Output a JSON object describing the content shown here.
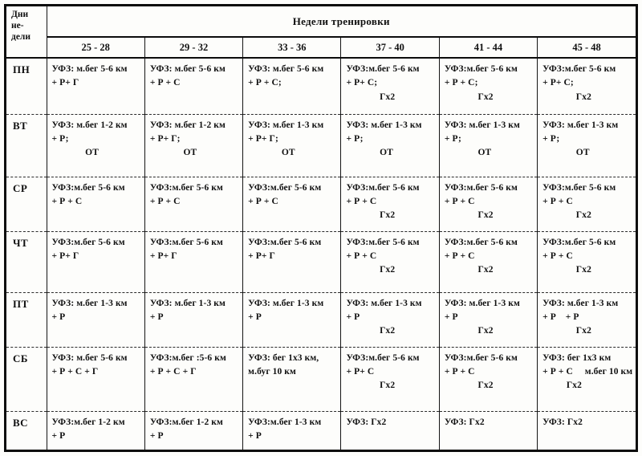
{
  "table": {
    "corner_header": "Дни\nне-\nдели",
    "main_header": "Недели тренировки",
    "week_columns": [
      "25 - 28",
      "29 - 32",
      "33 - 36",
      "37 - 40",
      "41 - 44",
      "45 - 48"
    ],
    "rows": [
      {
        "day": "ПН",
        "cells": [
          "УФЗ: м.бег 5-6 км\n+ Р+ Г",
          "УФЗ: м.бег 5-6 км\n+ Р + С",
          "УФЗ: м.бег 5-6 км\n+ Р + С;",
          "УФЗ:м.бег 5-6 км\n+ Р+ С;\n              Гх2",
          "УФЗ:м.бег 5-6 км\n+ Р + С;\n              Гх2",
          "УФЗ:м.бег 5-6 км\n+ Р+ С;\n              Гх2"
        ]
      },
      {
        "day": "ВТ",
        "cells": [
          "УФЗ: м.бег 1-2 км\n+ Р;\n              ОТ",
          "УФЗ: м.бег 1-2 км\n+ Р+ Г;\n              ОТ",
          "УФЗ: м.бег 1-3 км\n+ Р+ Г;\n              ОТ",
          "УФЗ: м.бег 1-3 км\n+ Р;\n              ОТ",
          "УФЗ: м.бег 1-3 км\n+ Р;\n              ОТ",
          "УФЗ: м.бег 1-3 км\n+ Р;\n              ОТ"
        ]
      },
      {
        "day": "СР",
        "cells": [
          "УФЗ:м.бег 5-6 км\n+ Р + С",
          "УФЗ:м.бег 5-6 км\n+ Р + С",
          "УФЗ:м.бег 5-6 км\n+ Р + С",
          "УФЗ:м.бег 5-6 км\n+ Р + С\n              Гх2",
          "УФЗ:м.бег 5-6 км\n+ Р + С\n              Гх2",
          "УФЗ:м.бег 5-6 км\n+ Р + С\n              Гх2"
        ]
      },
      {
        "day": "ЧТ",
        "cells": [
          "УФЗ:м.бег 5-6 км\n+ Р+ Г",
          "УФЗ:м.бег 5-6 км\n+ Р+ Г",
          "УФЗ:м.бег 5-6 км\n+ Р+ Г",
          "УФЗ:м.бег 5-6 км\n+ Р + С\n              Гх2",
          "УФЗ:м.бег 5-6 км\n+ Р + С\n              Гх2",
          "УФЗ:м.бег 5-6 км\n+ Р + С\n              Гх2"
        ]
      },
      {
        "day": "ПТ",
        "cells": [
          "УФЗ: м.бег 1-3 км\n+ Р",
          "УФЗ: м.бег 1-3 км\n+ Р",
          "УФЗ: м.бег 1-3 км\n+ Р",
          "УФЗ: м.бег 1-3 км\n+ Р\n              Гх2",
          "УФЗ: м.бег 1-3 км\n+ Р\n              Гх2",
          "УФЗ: м.бег 1-3 км\n+ Р    + Р\n              Гх2"
        ]
      },
      {
        "day": "СБ",
        "cells": [
          "УФЗ: м.бег 5-6 км\n+ Р + С + Г",
          "УФЗ:м.бег :5-6 км\n+ Р + С + Г",
          "УФЗ: бег 1х3 км,\nм.буг 10 км",
          "УФЗ:м.бег 5-6 км\n+ Р+ С\n              Гх2",
          "УФЗ:м.бег 5-6 км\n+ Р + С\n              Гх2",
          "УФЗ: бег 1х3 км\n+ Р + С     м.бег 10 км\n          Гх2"
        ]
      },
      {
        "day": "ВС",
        "cells": [
          "УФЗ:м.бег 1-2 км\n+ Р",
          "УФЗ:м.бег 1-2 км\n+ Р",
          "УФЗ:м.бег 1-3 км\n+ Р",
          "УФЗ: Гх2",
          "УФЗ: Гх2",
          "УФЗ: Гх2"
        ]
      }
    ]
  }
}
